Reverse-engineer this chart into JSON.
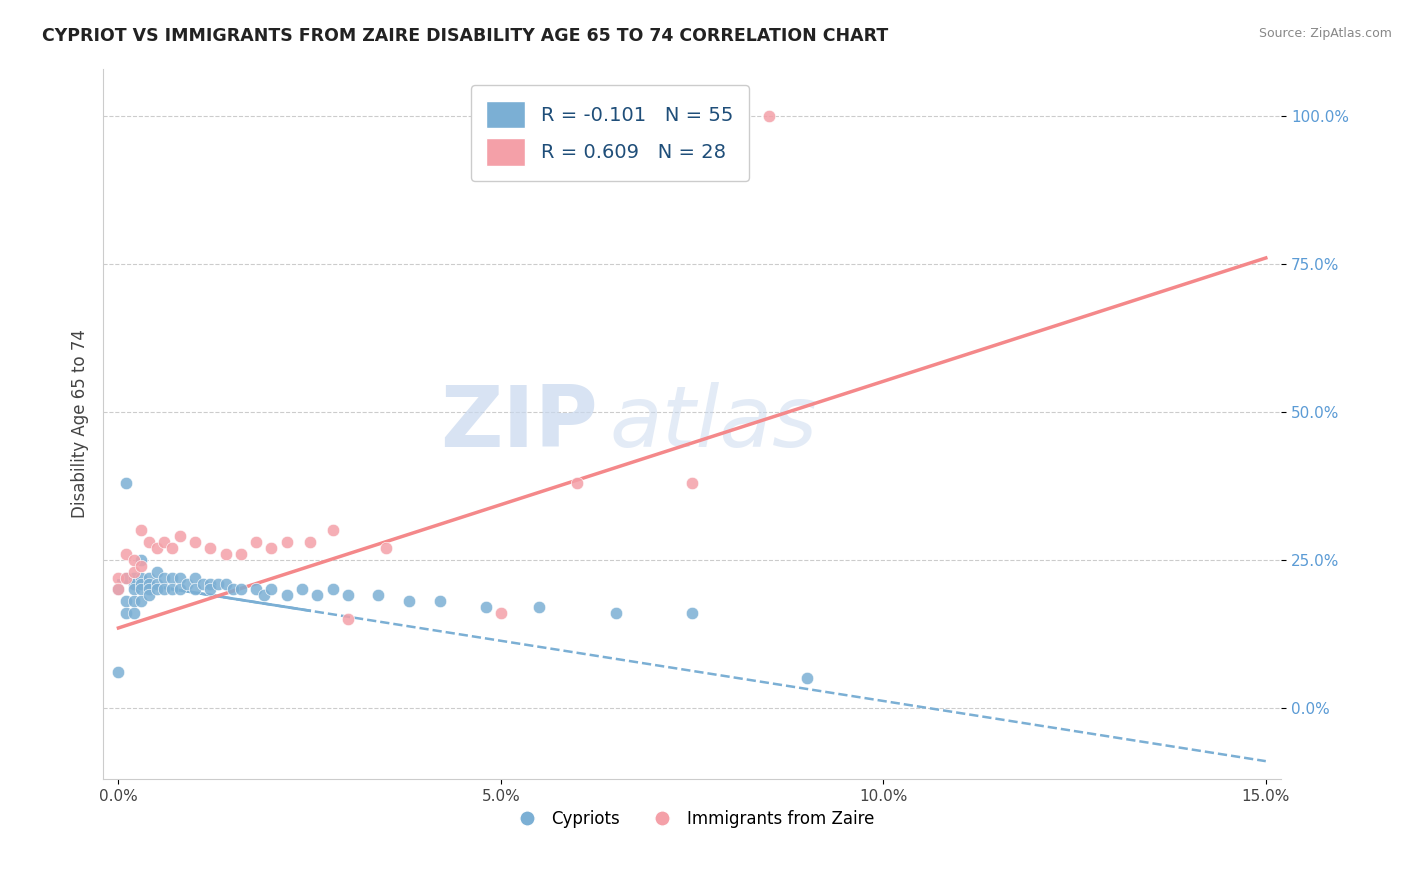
{
  "title": "CYPRIOT VS IMMIGRANTS FROM ZAIRE DISABILITY AGE 65 TO 74 CORRELATION CHART",
  "source": "Source: ZipAtlas.com",
  "xlabel": "",
  "ylabel": "Disability Age 65 to 74",
  "xlim": [
    -0.002,
    0.152
  ],
  "ylim": [
    -0.12,
    1.08
  ],
  "xticks": [
    0.0,
    0.05,
    0.1,
    0.15
  ],
  "xticklabels": [
    "0.0%",
    "5.0%",
    "10.0%",
    "15.0%"
  ],
  "yticks": [
    0.0,
    0.25,
    0.5,
    0.75,
    1.0
  ],
  "yticklabels": [
    "0.0%",
    "25.0%",
    "50.0%",
    "75.0%",
    "100.0%"
  ],
  "cypriot_color": "#7BAFD4",
  "zaire_color": "#F4A0A8",
  "cypriot_line_color": "#7BAFD4",
  "zaire_line_color": "#F4888A",
  "cypriot_R": -0.101,
  "cypriot_N": 55,
  "zaire_R": 0.609,
  "zaire_N": 28,
  "background_color": "#ffffff",
  "watermark_zip": "ZIP",
  "watermark_atlas": "atlas",
  "legend_label_cypriot": "R = -0.101   N = 55",
  "legend_label_zaire": "R = 0.609   N = 28",
  "bottom_legend_cypriot": "Cypriots",
  "bottom_legend_zaire": "Immigrants from Zaire",
  "cypriot_scatter_x": [
    0.0,
    0.0,
    0.001,
    0.001,
    0.001,
    0.001,
    0.002,
    0.002,
    0.002,
    0.002,
    0.002,
    0.003,
    0.003,
    0.003,
    0.003,
    0.003,
    0.004,
    0.004,
    0.004,
    0.004,
    0.005,
    0.005,
    0.005,
    0.006,
    0.006,
    0.007,
    0.007,
    0.008,
    0.008,
    0.009,
    0.01,
    0.01,
    0.011,
    0.012,
    0.012,
    0.013,
    0.014,
    0.015,
    0.016,
    0.018,
    0.019,
    0.02,
    0.022,
    0.024,
    0.026,
    0.028,
    0.03,
    0.034,
    0.038,
    0.042,
    0.048,
    0.055,
    0.065,
    0.075,
    0.09
  ],
  "cypriot_scatter_y": [
    0.2,
    0.06,
    0.38,
    0.22,
    0.18,
    0.16,
    0.22,
    0.21,
    0.2,
    0.18,
    0.16,
    0.25,
    0.22,
    0.21,
    0.2,
    0.18,
    0.22,
    0.21,
    0.2,
    0.19,
    0.23,
    0.21,
    0.2,
    0.22,
    0.2,
    0.22,
    0.2,
    0.22,
    0.2,
    0.21,
    0.22,
    0.2,
    0.21,
    0.21,
    0.2,
    0.21,
    0.21,
    0.2,
    0.2,
    0.2,
    0.19,
    0.2,
    0.19,
    0.2,
    0.19,
    0.2,
    0.19,
    0.19,
    0.18,
    0.18,
    0.17,
    0.17,
    0.16,
    0.16,
    0.05
  ],
  "zaire_scatter_x": [
    0.0,
    0.0,
    0.001,
    0.001,
    0.002,
    0.002,
    0.003,
    0.003,
    0.004,
    0.005,
    0.006,
    0.007,
    0.008,
    0.01,
    0.012,
    0.014,
    0.016,
    0.018,
    0.02,
    0.022,
    0.025,
    0.028,
    0.03,
    0.035,
    0.05,
    0.06,
    0.075,
    0.085
  ],
  "zaire_scatter_y": [
    0.22,
    0.2,
    0.26,
    0.22,
    0.25,
    0.23,
    0.3,
    0.24,
    0.28,
    0.27,
    0.28,
    0.27,
    0.29,
    0.28,
    0.27,
    0.26,
    0.26,
    0.28,
    0.27,
    0.28,
    0.28,
    0.3,
    0.15,
    0.27,
    0.16,
    0.38,
    0.38,
    1.0
  ],
  "cypriot_line_x": [
    0.0,
    0.15
  ],
  "cypriot_line_y": [
    0.215,
    -0.09
  ],
  "zaire_line_x": [
    0.0,
    0.15
  ],
  "zaire_line_y": [
    0.135,
    0.76
  ]
}
